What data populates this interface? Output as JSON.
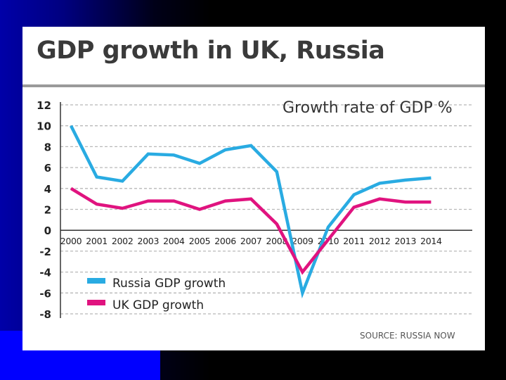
{
  "chart_data": {
    "type": "line",
    "title": "GDP growth in UK, Russia",
    "subtitle": "Growth rate of GDP %",
    "source": "SOURCE: RUSSIA NOW",
    "x": [
      "2000",
      "2001",
      "2002",
      "2003",
      "2004",
      "2005",
      "2006",
      "2007",
      "2008",
      "2009",
      "2010",
      "2011",
      "2012",
      "2013",
      "2014"
    ],
    "ylim": [
      -8,
      12
    ],
    "yticks": [
      "12",
      "10",
      "8",
      "6",
      "4",
      "2",
      "0",
      "-2",
      "-4",
      "-6",
      "-8"
    ],
    "grid": true,
    "legend_position": "bottom-left",
    "series": [
      {
        "name": "Russia GDP growth",
        "color": "#29abe2",
        "values": [
          10.0,
          5.1,
          4.7,
          7.3,
          7.2,
          6.4,
          7.7,
          8.1,
          5.6,
          -6.0,
          0.3,
          3.4,
          4.5,
          4.8,
          5.0
        ]
      },
      {
        "name": "UK GDP growth",
        "color": "#e0137f",
        "values": [
          4.0,
          2.5,
          2.1,
          2.8,
          2.8,
          2.0,
          2.8,
          3.0,
          0.6,
          -4.0,
          -0.9,
          2.2,
          3.0,
          2.7,
          2.7
        ]
      }
    ]
  }
}
